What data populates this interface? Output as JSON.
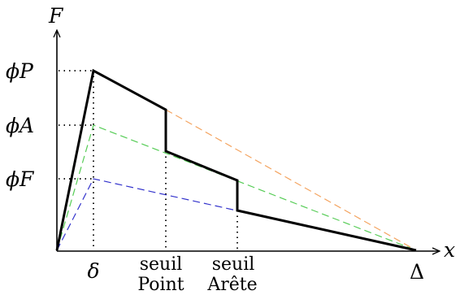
{
  "axes": {
    "y_label": "F",
    "x_label": "x"
  },
  "y_ticks": {
    "phiP": "ϕP",
    "phiA": "ϕA",
    "phiF": "ϕF"
  },
  "x_ticks": {
    "delta": "δ",
    "seuil_point_line1": "seuil",
    "seuil_point_line2": "Point",
    "seuil_arete_line1": "seuil",
    "seuil_arete_line2": "Arête",
    "Delta": "Δ"
  },
  "colors": {
    "main_curve": "#000000",
    "phiP_dashed": "#f4a460",
    "phiA_dashed": "#55cc55",
    "phiF_dashed": "#3333cc"
  }
}
